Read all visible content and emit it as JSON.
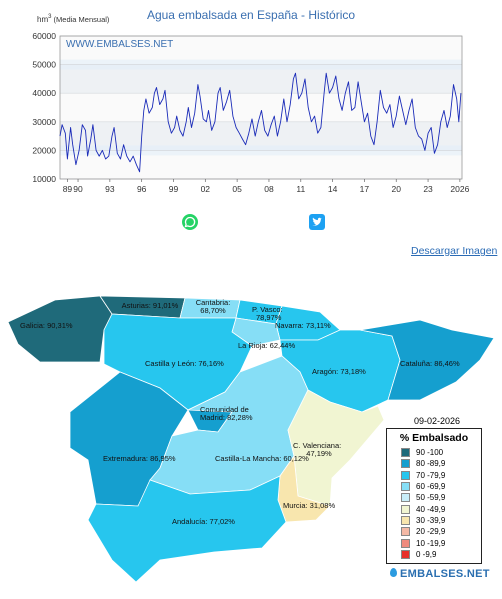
{
  "chart_data": {
    "type": "line",
    "title": "Agua embalsada en España - Histórico",
    "ylabel_unit": "hm",
    "ylabel_sup": "3",
    "ylabel_text": "(Media Mensual)",
    "watermark": "WWW.EMBALSES.NET",
    "ylim": [
      10000,
      60000
    ],
    "yticks": [
      10000,
      20000,
      30000,
      40000,
      50000,
      60000
    ],
    "xlim": [
      1988.3,
      2026.2
    ],
    "xticks": [
      {
        "pos": 1989,
        "label": "89"
      },
      {
        "pos": 1990,
        "label": "90"
      },
      {
        "pos": 1993,
        "label": "93"
      },
      {
        "pos": 1996,
        "label": "96"
      },
      {
        "pos": 1999,
        "label": "99"
      },
      {
        "pos": 2002,
        "label": "02"
      },
      {
        "pos": 2005,
        "label": "05"
      },
      {
        "pos": 2008,
        "label": "08"
      },
      {
        "pos": 2011,
        "label": "11"
      },
      {
        "pos": 2014,
        "label": "14"
      },
      {
        "pos": 2017,
        "label": "17"
      },
      {
        "pos": 2020,
        "label": "20"
      },
      {
        "pos": 2023,
        "label": "23"
      },
      {
        "pos": 2026,
        "label": "2026"
      }
    ],
    "series": [
      {
        "color": "#1a2bb8",
        "points": [
          [
            1988.3,
            25000
          ],
          [
            1988.5,
            29000
          ],
          [
            1988.8,
            26000
          ],
          [
            1989.0,
            17000
          ],
          [
            1989.3,
            28000
          ],
          [
            1989.5,
            22000
          ],
          [
            1989.8,
            15000
          ],
          [
            1990.1,
            20000
          ],
          [
            1990.4,
            29000
          ],
          [
            1990.7,
            27000
          ],
          [
            1990.9,
            18000
          ],
          [
            1991.2,
            24000
          ],
          [
            1991.4,
            29000
          ],
          [
            1991.7,
            20000
          ],
          [
            1992.0,
            18000
          ],
          [
            1992.3,
            20000
          ],
          [
            1992.6,
            17000
          ],
          [
            1992.9,
            18000
          ],
          [
            1993.2,
            25000
          ],
          [
            1993.4,
            28000
          ],
          [
            1993.7,
            19000
          ],
          [
            1994.0,
            17000
          ],
          [
            1994.3,
            22000
          ],
          [
            1994.6,
            18000
          ],
          [
            1994.9,
            16000
          ],
          [
            1995.2,
            18000
          ],
          [
            1995.5,
            15000
          ],
          [
            1995.8,
            12500
          ],
          [
            1996.0,
            25000
          ],
          [
            1996.2,
            34000
          ],
          [
            1996.4,
            38000
          ],
          [
            1996.7,
            33000
          ],
          [
            1997.0,
            35000
          ],
          [
            1997.2,
            40000
          ],
          [
            1997.4,
            42000
          ],
          [
            1997.7,
            36000
          ],
          [
            1998.0,
            38000
          ],
          [
            1998.2,
            41000
          ],
          [
            1998.5,
            30000
          ],
          [
            1998.8,
            26000
          ],
          [
            1999.1,
            28000
          ],
          [
            1999.3,
            32000
          ],
          [
            1999.6,
            27000
          ],
          [
            1999.9,
            25000
          ],
          [
            2000.2,
            30000
          ],
          [
            2000.4,
            35000
          ],
          [
            2000.7,
            28000
          ],
          [
            2001.0,
            33000
          ],
          [
            2001.3,
            43000
          ],
          [
            2001.5,
            39000
          ],
          [
            2001.8,
            31000
          ],
          [
            2002.1,
            30000
          ],
          [
            2002.3,
            34000
          ],
          [
            2002.6,
            27000
          ],
          [
            2002.9,
            30000
          ],
          [
            2003.2,
            40000
          ],
          [
            2003.4,
            42000
          ],
          [
            2003.7,
            34000
          ],
          [
            2004.0,
            37000
          ],
          [
            2004.3,
            41000
          ],
          [
            2004.6,
            32000
          ],
          [
            2004.9,
            28000
          ],
          [
            2005.2,
            26000
          ],
          [
            2005.5,
            24000
          ],
          [
            2005.8,
            22000
          ],
          [
            2006.1,
            26000
          ],
          [
            2006.4,
            31000
          ],
          [
            2006.7,
            25000
          ],
          [
            2007.0,
            30000
          ],
          [
            2007.3,
            34000
          ],
          [
            2007.6,
            27000
          ],
          [
            2007.9,
            25000
          ],
          [
            2008.2,
            29000
          ],
          [
            2008.5,
            32000
          ],
          [
            2008.8,
            25000
          ],
          [
            2009.1,
            30000
          ],
          [
            2009.4,
            38000
          ],
          [
            2009.7,
            30000
          ],
          [
            2010.0,
            36000
          ],
          [
            2010.3,
            45000
          ],
          [
            2010.5,
            47000
          ],
          [
            2010.8,
            38000
          ],
          [
            2011.1,
            40000
          ],
          [
            2011.4,
            45000
          ],
          [
            2011.7,
            35000
          ],
          [
            2012.0,
            30000
          ],
          [
            2012.3,
            32000
          ],
          [
            2012.6,
            26000
          ],
          [
            2012.9,
            28000
          ],
          [
            2013.2,
            40000
          ],
          [
            2013.4,
            47000
          ],
          [
            2013.7,
            40000
          ],
          [
            2014.0,
            42000
          ],
          [
            2014.3,
            46000
          ],
          [
            2014.6,
            38000
          ],
          [
            2014.9,
            34000
          ],
          [
            2015.2,
            40000
          ],
          [
            2015.5,
            44000
          ],
          [
            2015.8,
            34000
          ],
          [
            2016.1,
            35000
          ],
          [
            2016.4,
            44000
          ],
          [
            2016.7,
            37000
          ],
          [
            2017.0,
            30000
          ],
          [
            2017.3,
            33000
          ],
          [
            2017.6,
            25000
          ],
          [
            2017.9,
            22000
          ],
          [
            2018.2,
            30000
          ],
          [
            2018.5,
            41000
          ],
          [
            2018.8,
            35000
          ],
          [
            2019.1,
            33000
          ],
          [
            2019.4,
            36000
          ],
          [
            2019.7,
            28000
          ],
          [
            2020.0,
            32000
          ],
          [
            2020.3,
            39000
          ],
          [
            2020.6,
            34000
          ],
          [
            2020.9,
            29000
          ],
          [
            2021.2,
            34000
          ],
          [
            2021.5,
            38000
          ],
          [
            2021.8,
            28000
          ],
          [
            2022.1,
            25000
          ],
          [
            2022.4,
            24000
          ],
          [
            2022.7,
            20000
          ],
          [
            2023.0,
            26000
          ],
          [
            2023.3,
            28000
          ],
          [
            2023.6,
            19000
          ],
          [
            2023.9,
            22000
          ],
          [
            2024.2,
            30000
          ],
          [
            2024.5,
            34000
          ],
          [
            2024.8,
            28000
          ],
          [
            2025.1,
            32000
          ],
          [
            2025.4,
            43000
          ],
          [
            2025.7,
            38000
          ],
          [
            2025.9,
            30000
          ],
          [
            2026.1,
            40000
          ]
        ]
      }
    ]
  },
  "share": {
    "whatsapp_icon": "whatsapp-icon",
    "twitter_icon": "twitter-icon"
  },
  "download_label": "Descargar Imagen",
  "map": {
    "date": "09-02-2026",
    "regions": [
      {
        "name": "Galicia",
        "label": "Galicia: 90,31%",
        "pct": 90.31
      },
      {
        "name": "Asturias",
        "label": "Asturias: 91,01%",
        "pct": 91.01
      },
      {
        "name": "Cantabria",
        "label": "Cantabria: 68,70%",
        "pct": 68.7
      },
      {
        "name": "P. Vasco",
        "label": "P. Vasco: 78,97%",
        "pct": 78.97
      },
      {
        "name": "Navarra",
        "label": "Navarra: 73,11%",
        "pct": 73.11
      },
      {
        "name": "La Rioja",
        "label": "La Rioja: 62,44%",
        "pct": 62.44
      },
      {
        "name": "Castilla y León",
        "label": "Castilla y León: 76,16%",
        "pct": 76.16
      },
      {
        "name": "Aragón",
        "label": "Aragón: 73,18%",
        "pct": 73.18
      },
      {
        "name": "Cataluña",
        "label": "Cataluña: 86,46%",
        "pct": 86.46
      },
      {
        "name": "Comunidad de Madrid",
        "label": "Comunidad de Madrid: 82,28%",
        "pct": 82.28
      },
      {
        "name": "Extremadura",
        "label": "Extremadura: 86,95%",
        "pct": 86.95
      },
      {
        "name": "Castilla-La Mancha",
        "label": "Castilla-La Mancha: 60,12%",
        "pct": 60.12
      },
      {
        "name": "C. Valenciana",
        "label": "C. Valenciana: 47,19%",
        "pct": 47.19
      },
      {
        "name": "Murcia",
        "label": "Murcia: 31,08%",
        "pct": 31.08
      },
      {
        "name": "Andalucía",
        "label": "Andalucía: 77,02%",
        "pct": 77.02
      }
    ],
    "legend_title": "% Embalsado",
    "legend": [
      {
        "label": "90 -100",
        "color": "#1f6a7a"
      },
      {
        "label": "80 -89,9",
        "color": "#159fcf"
      },
      {
        "label": "70 -79,9",
        "color": "#27c6ee"
      },
      {
        "label": "60 -69,9",
        "color": "#86def6"
      },
      {
        "label": "50 -59,9",
        "color": "#c9eef9"
      },
      {
        "label": "40 -49,9",
        "color": "#f1f5d2"
      },
      {
        "label": "30 -39,9",
        "color": "#f8e6ae"
      },
      {
        "label": "20 -29,9",
        "color": "#f4b9a6"
      },
      {
        "label": "10 -19,9",
        "color": "#ef8b7f"
      },
      {
        "label": "0 -9,9",
        "color": "#e8302b"
      }
    ]
  },
  "brand": "EMBALSES.NET"
}
